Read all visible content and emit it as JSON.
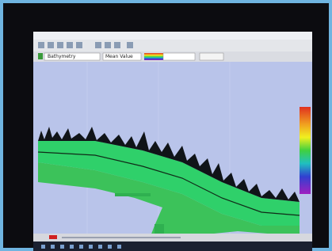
{
  "toolbar": {
    "layer": "Bathymetry",
    "mode": "Mean Value"
  }
}
